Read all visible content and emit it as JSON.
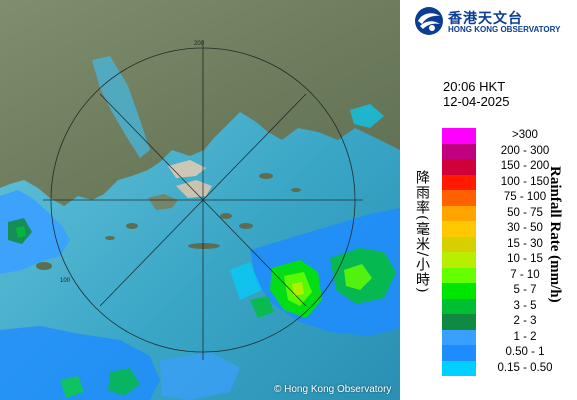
{
  "brand": {
    "name_cn": "香港天文台",
    "name_en": "HONG KONG OBSERVATORY",
    "emblem_icon": "hko-emblem-icon"
  },
  "observation": {
    "time": "20:06 HKT",
    "date": "12-04-2025"
  },
  "legend": {
    "title_cn": "降雨率(毫米/小時)",
    "title_en": "Rainfall Rate (mm/h)",
    "items": [
      {
        "label": ">300",
        "color": "#ff00ff"
      },
      {
        "label": "200 - 300",
        "color": "#c00080"
      },
      {
        "label": "150 - 200",
        "color": "#d0003a"
      },
      {
        "label": "100 - 150",
        "color": "#ff1a00"
      },
      {
        "label": "75 - 100",
        "color": "#ff6000"
      },
      {
        "label": "50 - 75",
        "color": "#ffa300"
      },
      {
        "label": "30 - 50",
        "color": "#ffc800"
      },
      {
        "label": "15 - 30",
        "color": "#d6d000"
      },
      {
        "label": "10 - 15",
        "color": "#b8ee00"
      },
      {
        "label": "7 - 10",
        "color": "#66ff00"
      },
      {
        "label": "5 - 7",
        "color": "#00e600"
      },
      {
        "label": "3 - 5",
        "color": "#00c032"
      },
      {
        "label": "2 - 3",
        "color": "#108a40"
      },
      {
        "label": "1 - 2",
        "color": "#3aa0ff"
      },
      {
        "label": "0.50 - 1",
        "color": "#1e8cff"
      },
      {
        "label": "0.15 - 0.50",
        "color": "#00d0ff"
      }
    ]
  },
  "map": {
    "range_rings": [
      "200",
      "100"
    ],
    "copyright": "© Hong Kong Observatory"
  }
}
